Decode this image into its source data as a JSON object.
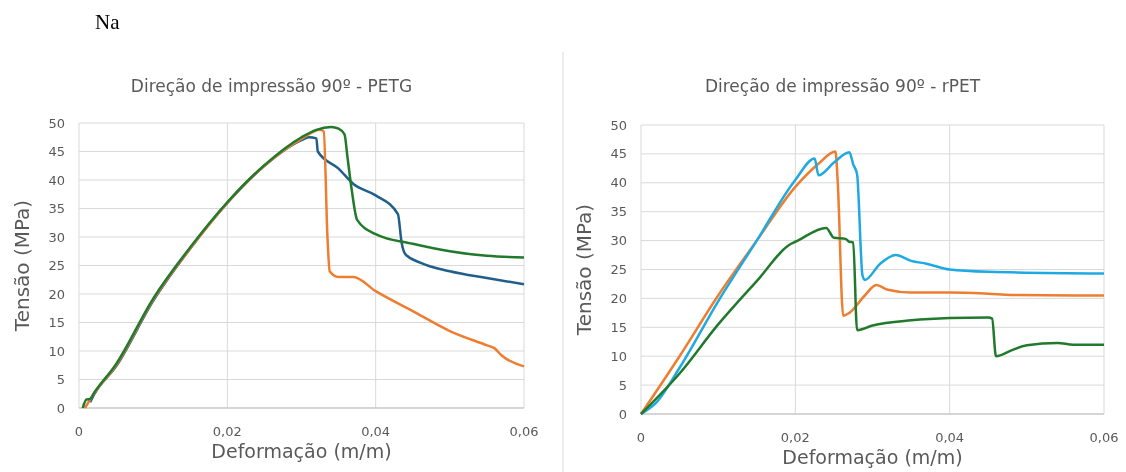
{
  "chart_data": [
    {
      "type": "line",
      "title": "Direção de impressão 90º - PETG",
      "xlabel": "Deformação (m/m)",
      "ylabel": "Tensão (MPa)",
      "annotations": [
        "Na"
      ],
      "xlim": [
        0,
        0.06
      ],
      "ylim": [
        0,
        50
      ],
      "xticks": [
        {
          "value": 0,
          "label": "0"
        },
        {
          "value": 0.02,
          "label": "0,02"
        },
        {
          "value": 0.04,
          "label": "0,04"
        },
        {
          "value": 0.06,
          "label": "0,06"
        }
      ],
      "yticks": [
        0,
        5,
        10,
        15,
        20,
        25,
        30,
        35,
        40,
        45,
        50
      ],
      "grid": true,
      "marker": "none",
      "line_style": "solid",
      "series": [
        {
          "color": "#215f8b",
          "x": [
            0.0015,
            0.002,
            0.005,
            0.01,
            0.015,
            0.02,
            0.025,
            0.03,
            0.031,
            0.032,
            0.0322,
            0.035,
            0.037,
            0.04,
            0.043,
            0.0435,
            0.044,
            0.046,
            0.05,
            0.055,
            0.06
          ],
          "values": [
            1,
            2.3,
            7.3,
            18.8,
            28,
            36,
            42.5,
            47,
            47.5,
            47.3,
            45,
            42,
            39.3,
            37.3,
            34,
            29,
            27,
            25.5,
            24,
            22.8,
            21.7
          ]
        },
        {
          "color": "#ed7d31",
          "x": [
            0.0008,
            0.002,
            0.005,
            0.01,
            0.015,
            0.02,
            0.025,
            0.03,
            0.0325,
            0.033,
            0.0335,
            0.0338,
            0.035,
            0.037,
            0.04,
            0.045,
            0.05,
            0.055,
            0.056,
            0.057,
            0.06
          ],
          "values": [
            0,
            2.5,
            7.5,
            19,
            28,
            36,
            42.5,
            47.2,
            48.8,
            48.5,
            30,
            24,
            23,
            23,
            20.5,
            17,
            13.5,
            11,
            10.5,
            9.2,
            7.3
          ]
        },
        {
          "color": "#217a2c",
          "x": [
            0.0005,
            0.001,
            0.0015,
            0.002,
            0.005,
            0.01,
            0.015,
            0.02,
            0.025,
            0.03,
            0.032,
            0.034,
            0.035,
            0.0358,
            0.0362,
            0.0368,
            0.0375,
            0.04,
            0.045,
            0.05,
            0.055,
            0.06
          ],
          "values": [
            0,
            1.5,
            1.6,
            2.6,
            7.7,
            19.2,
            28.2,
            36.1,
            42.6,
            47.5,
            48.8,
            49.3,
            49,
            48,
            44,
            38,
            33,
            30.5,
            28.8,
            27.5,
            26.7,
            26.4
          ]
        }
      ]
    },
    {
      "type": "line",
      "title": "Direção de impressão 90º - rPET",
      "xlabel": "Deformação (m/m)",
      "ylabel": "Tensão (MPa)",
      "xlim": [
        0,
        0.06
      ],
      "ylim": [
        0,
        50
      ],
      "xticks": [
        {
          "value": 0,
          "label": "0"
        },
        {
          "value": 0.02,
          "label": "0,02"
        },
        {
          "value": 0.04,
          "label": "0,04"
        },
        {
          "value": 0.06,
          "label": "0,06"
        }
      ],
      "yticks": [
        0,
        5,
        10,
        15,
        20,
        25,
        30,
        35,
        40,
        45,
        50
      ],
      "grid": true,
      "marker": "none",
      "line_style": "solid",
      "series": [
        {
          "color": "#ed7d31",
          "x": [
            0,
            0.005,
            0.01,
            0.015,
            0.02,
            0.023,
            0.0252,
            0.0255,
            0.0262,
            0.027,
            0.029,
            0.0305,
            0.032,
            0.035,
            0.04,
            0.045,
            0.048,
            0.06
          ],
          "values": [
            0,
            10,
            20.5,
            30,
            39.3,
            43.3,
            45.4,
            40,
            17,
            17.5,
            20.5,
            22.3,
            21.5,
            21,
            21,
            20.8,
            20.6,
            20.5
          ]
        },
        {
          "color": "#1fa9e1",
          "x": [
            0,
            0.002,
            0.005,
            0.01,
            0.015,
            0.02,
            0.0225,
            0.023,
            0.025,
            0.027,
            0.0275,
            0.028,
            0.0287,
            0.029,
            0.031,
            0.033,
            0.035,
            0.037,
            0.04,
            0.045,
            0.06
          ],
          "values": [
            0,
            2,
            8,
            19.5,
            30,
            40.5,
            44.2,
            41.3,
            43.5,
            45.3,
            43.2,
            41.5,
            24,
            23.2,
            26,
            27.5,
            26.5,
            26,
            25,
            24.6,
            24.3
          ]
        },
        {
          "color": "#217a2c",
          "x": [
            0,
            0.005,
            0.01,
            0.015,
            0.0195,
            0.02,
            0.024,
            0.025,
            0.0265,
            0.027,
            0.0275,
            0.028,
            0.03,
            0.035,
            0.04,
            0.045,
            0.0455,
            0.046,
            0.048,
            0.05,
            0.054,
            0.056,
            0.06
          ],
          "values": [
            0,
            7,
            15.5,
            23,
            29.5,
            29.8,
            32.2,
            30.5,
            30.3,
            29.8,
            29.7,
            14.5,
            15.3,
            16.2,
            16.6,
            16.7,
            16.5,
            10,
            11,
            11.9,
            12.3,
            12,
            12
          ]
        }
      ]
    }
  ]
}
